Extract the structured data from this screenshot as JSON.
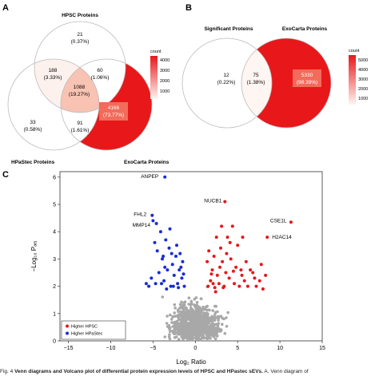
{
  "panels": {
    "a": "A",
    "b": "B",
    "c": "C"
  },
  "venn_a": {
    "sets": {
      "hpsc": "HPSC Proteins",
      "hpastec": "HPaStec Proteins",
      "exocarta": "ExoCarta Proteins"
    },
    "regions": [
      {
        "id": "hpsc_only",
        "count": "21",
        "pct": "(0.37%)",
        "fill": "#ffffff",
        "text_color": "#222222"
      },
      {
        "id": "hpsc_hpastec",
        "count": "188",
        "pct": "(3.33%)",
        "fill": "#fdf1ee",
        "text_color": "#222222"
      },
      {
        "id": "hpsc_exocarta",
        "count": "60",
        "pct": "(1.06%)",
        "fill": "#ffffff",
        "text_color": "#222222"
      },
      {
        "id": "all_three",
        "count": "1088",
        "pct": "(19.27%)",
        "fill": "#f8c3b3",
        "text_color": "#222222"
      },
      {
        "id": "hpastec_only",
        "count": "33",
        "pct": "(0.58%)",
        "fill": "#ffffff",
        "text_color": "#222222"
      },
      {
        "id": "hpastec_exocarta",
        "count": "91",
        "pct": "(1.61%)",
        "fill": "#ffffff",
        "text_color": "#222222"
      },
      {
        "id": "exocarta_only",
        "count": "4166",
        "pct": "(73.77%)",
        "fill": "#e8171a",
        "text_color": "#ffffff"
      }
    ],
    "legend": {
      "title": "count",
      "ticks": [
        "4000",
        "3000",
        "2000",
        "1000"
      ]
    }
  },
  "venn_b": {
    "sets": {
      "significant": "Significant Proteins",
      "exocarta": "ExoCarta Proteins"
    },
    "regions": [
      {
        "id": "significant_only",
        "count": "12",
        "pct": "(0.22%)",
        "fill": "#ffffff",
        "text_color": "#222222"
      },
      {
        "id": "overlap",
        "count": "75",
        "pct": "(1.38%)",
        "fill": "#fff5f2",
        "text_color": "#222222"
      },
      {
        "id": "exocarta_only",
        "count": "5330",
        "pct": "(98.39%)",
        "fill": "#e8171a",
        "text_color": "#ffffff"
      }
    ],
    "legend": {
      "title": "count",
      "ticks": [
        "5000",
        "4000",
        "3000",
        "2000",
        "1000"
      ]
    }
  },
  "colors": {
    "red": "#e8171a",
    "blue": "#1a2bd6",
    "grey": "#a8a8a8",
    "pale": "#fbe3dc"
  },
  "chart_data": {
    "type": "scatter",
    "title": "",
    "xlabel": "Log₂ Ratio",
    "ylabel": "−Log₁₀ Pₐₑⱼ",
    "xlim": [
      -16,
      15
    ],
    "ylim": [
      0,
      6.2
    ],
    "xticks": [
      -15,
      -10,
      -5,
      0,
      5,
      10,
      15
    ],
    "yticks": [
      0,
      1,
      2,
      3,
      4,
      5,
      6
    ],
    "legend": [
      {
        "name": "Higher HPSC",
        "color": "#e8171a"
      },
      {
        "name": "Higher HPaStec",
        "color": "#1a2bd6"
      }
    ],
    "legend_position": "bottom-left",
    "labeled_points": [
      {
        "label": "ANPEP",
        "x": -3.6,
        "y": 6.0,
        "group": "blue"
      },
      {
        "label": "NUCB1",
        "x": 3.5,
        "y": 5.1,
        "group": "red"
      },
      {
        "label": "FHL2",
        "x": -5.1,
        "y": 4.6,
        "group": "blue"
      },
      {
        "label": "MMP14",
        "x": -4.6,
        "y": 4.3,
        "group": "blue"
      },
      {
        "label": "CSE1L",
        "x": 11.3,
        "y": 4.35,
        "group": "red"
      },
      {
        "label": "H2AC14",
        "x": 8.5,
        "y": 3.8,
        "group": "red"
      }
    ],
    "series": [
      {
        "name": "Higher HPSC",
        "color": "#e8171a",
        "points": [
          [
            1.5,
            2.0
          ],
          [
            1.8,
            2.2
          ],
          [
            2.0,
            2.6
          ],
          [
            2.2,
            3.1
          ],
          [
            2.4,
            1.8
          ],
          [
            2.6,
            2.4
          ],
          [
            2.8,
            2.1
          ],
          [
            3.0,
            3.4
          ],
          [
            3.2,
            2.9
          ],
          [
            3.4,
            2.0
          ],
          [
            3.6,
            2.5
          ],
          [
            3.8,
            3.8
          ],
          [
            4.0,
            2.3
          ],
          [
            4.2,
            3.0
          ],
          [
            4.4,
            4.2
          ],
          [
            4.6,
            2.1
          ],
          [
            4.8,
            2.7
          ],
          [
            5.0,
            3.5
          ],
          [
            5.2,
            2.0
          ],
          [
            5.4,
            2.6
          ],
          [
            5.6,
            3.8
          ],
          [
            5.8,
            2.2
          ],
          [
            6.0,
            2.9
          ],
          [
            6.2,
            2.0
          ],
          [
            6.5,
            2.6
          ],
          [
            7.0,
            2.3
          ],
          [
            7.2,
            2.0
          ],
          [
            7.6,
            2.2
          ],
          [
            8.0,
            1.9
          ],
          [
            8.3,
            2.4
          ],
          [
            1.4,
            2.9
          ],
          [
            2.1,
            2.1
          ],
          [
            2.9,
            2.7
          ],
          [
            3.7,
            3.2
          ],
          [
            1.6,
            3.3
          ],
          [
            2.5,
            3.8
          ],
          [
            3.1,
            4.2
          ],
          [
            4.1,
            3.6
          ],
          [
            6.8,
            2.5
          ],
          [
            5.5,
            2.4
          ],
          [
            2.3,
            1.95
          ],
          [
            3.3,
            1.95
          ],
          [
            1.9,
            2.45
          ],
          [
            4.5,
            2.55
          ],
          [
            7.8,
            2.8
          ]
        ]
      },
      {
        "name": "Higher HPaStec",
        "color": "#1a2bd6",
        "points": [
          [
            -1.3,
            2.0
          ],
          [
            -1.6,
            2.3
          ],
          [
            -1.9,
            2.6
          ],
          [
            -2.1,
            2.1
          ],
          [
            -2.3,
            3.1
          ],
          [
            -2.5,
            2.4
          ],
          [
            -2.7,
            2.8
          ],
          [
            -2.9,
            2.0
          ],
          [
            -3.1,
            3.4
          ],
          [
            -3.3,
            2.6
          ],
          [
            -3.5,
            3.7
          ],
          [
            -3.7,
            2.2
          ],
          [
            -3.9,
            3.0
          ],
          [
            -4.1,
            4.0
          ],
          [
            -4.3,
            2.5
          ],
          [
            -4.5,
            3.3
          ],
          [
            -4.7,
            2.1
          ],
          [
            -5.0,
            4.4
          ],
          [
            -5.2,
            2.3
          ],
          [
            -5.5,
            2.0
          ],
          [
            -1.5,
            2.9
          ],
          [
            -2.2,
            3.5
          ],
          [
            -3.0,
            4.1
          ],
          [
            -1.8,
            3.2
          ],
          [
            -2.6,
            2.0
          ],
          [
            -3.6,
            2.7
          ],
          [
            -4.0,
            2.1
          ],
          [
            -4.8,
            3.6
          ],
          [
            -1.4,
            2.45
          ],
          [
            -2.0,
            1.95
          ],
          [
            -3.4,
            1.9
          ],
          [
            -5.8,
            2.1
          ],
          [
            -1.7,
            2.7
          ],
          [
            -2.8,
            3.2
          ],
          [
            -3.8,
            3.1
          ]
        ]
      }
    ]
  },
  "caption": {
    "lead": "Fig. 4",
    "bold": "Venn diagrams and Volcano plot of differential protein expression levels of HPSC and HPastec sEVs.",
    "rest": " A. Venn diagram of"
  }
}
